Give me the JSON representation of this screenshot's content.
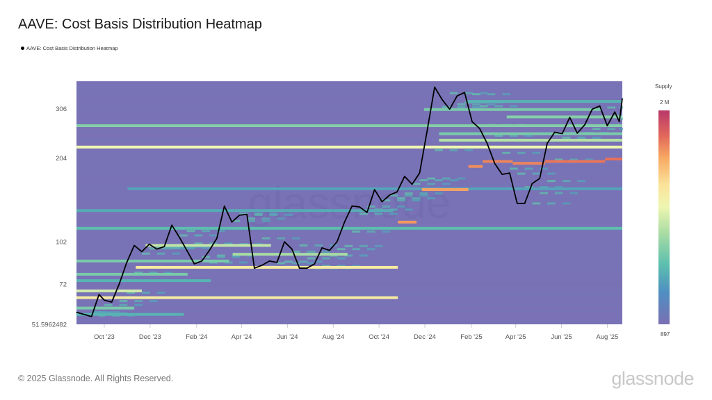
{
  "title": "AAVE: Cost Basis Distribution Heatmap",
  "legend": {
    "label": "AAVE: Cost Basis Distribution Heatmap",
    "color": "#000000"
  },
  "colorbar": {
    "title": "Supply",
    "max_label": "2 M",
    "min_label": "897",
    "colors": [
      "#7a6fb3",
      "#4f8fc2",
      "#5cbfae",
      "#a6dba4",
      "#eef6b0",
      "#fbe39a",
      "#f7a862",
      "#e2685a",
      "#b8386a"
    ]
  },
  "footer": "© 2025 Glassnode. All Rights Reserved.",
  "logo": "glassnode",
  "watermark": "glassnode",
  "chart_data": {
    "type": "heatmap",
    "title": "AAVE: Cost Basis Distribution Heatmap",
    "y_scale": "log",
    "ylim": [
      51.5962482,
      384
    ],
    "xlim": [
      "2023-08-25",
      "2025-08-21"
    ],
    "y_ticks": [
      {
        "value": 51.5962482,
        "label": "51.5962482"
      },
      {
        "value": 72,
        "label": "72"
      },
      {
        "value": 102,
        "label": "102"
      },
      {
        "value": 204,
        "label": "204"
      },
      {
        "value": 306,
        "label": "306"
      }
    ],
    "x_ticks": [
      {
        "date": "2023-10-01",
        "label": "Oct '23"
      },
      {
        "date": "2023-12-01",
        "label": "Dec '23"
      },
      {
        "date": "2024-02-01",
        "label": "Feb '24"
      },
      {
        "date": "2024-04-01",
        "label": "Apr '24"
      },
      {
        "date": "2024-06-01",
        "label": "Jun '24"
      },
      {
        "date": "2024-08-01",
        "label": "Aug '24"
      },
      {
        "date": "2024-10-01",
        "label": "Oct '24"
      },
      {
        "date": "2024-12-01",
        "label": "Dec '24"
      },
      {
        "date": "2025-02-01",
        "label": "Feb '25"
      },
      {
        "date": "2025-04-01",
        "label": "Apr '25"
      },
      {
        "date": "2025-06-01",
        "label": "Jun '25"
      },
      {
        "date": "2025-08-01",
        "label": "Aug '25"
      }
    ],
    "grid": false,
    "background_color": "#7a72b6",
    "line_color": "#000000",
    "price_series": {
      "name": "AAVE: Cost Basis Distribution Heatmap",
      "dates": [
        "2023-08-25",
        "2023-09-04",
        "2023-09-14",
        "2023-09-24",
        "2023-10-01",
        "2023-10-11",
        "2023-10-21",
        "2023-10-31",
        "2023-11-10",
        "2023-11-20",
        "2023-11-30",
        "2023-12-10",
        "2023-12-20",
        "2023-12-30",
        "2024-01-09",
        "2024-01-19",
        "2024-01-29",
        "2024-02-08",
        "2024-02-18",
        "2024-02-28",
        "2024-03-09",
        "2024-03-19",
        "2024-03-29",
        "2024-04-08",
        "2024-04-18",
        "2024-04-28",
        "2024-05-08",
        "2024-05-18",
        "2024-05-28",
        "2024-06-07",
        "2024-06-17",
        "2024-06-27",
        "2024-07-07",
        "2024-07-17",
        "2024-07-27",
        "2024-08-06",
        "2024-08-16",
        "2024-08-26",
        "2024-09-05",
        "2024-09-15",
        "2024-09-25",
        "2024-10-05",
        "2024-10-15",
        "2024-10-25",
        "2024-11-04",
        "2024-11-14",
        "2024-11-24",
        "2024-12-04",
        "2024-12-14",
        "2024-12-24",
        "2025-01-03",
        "2025-01-13",
        "2025-01-23",
        "2025-02-02",
        "2025-02-12",
        "2025-02-22",
        "2025-03-04",
        "2025-03-14",
        "2025-03-24",
        "2025-04-03",
        "2025-04-13",
        "2025-04-23",
        "2025-05-03",
        "2025-05-13",
        "2025-05-23",
        "2025-06-02",
        "2025-06-12",
        "2025-06-22",
        "2025-07-02",
        "2025-07-12",
        "2025-07-22",
        "2025-08-01",
        "2025-08-11",
        "2025-08-17",
        "2025-08-21"
      ],
      "values": [
        57,
        56,
        55,
        66,
        63,
        62,
        72,
        86,
        99,
        94,
        100,
        96,
        98,
        117,
        106,
        95,
        85,
        87,
        95,
        105,
        137,
        120,
        127,
        128,
        82,
        84,
        87,
        86,
        102,
        96,
        82,
        82,
        85,
        97,
        95,
        102,
        120,
        137,
        136,
        130,
        157,
        142,
        150,
        154,
        175,
        164,
        180,
        255,
        366,
        330,
        305,
        340,
        350,
        275,
        260,
        230,
        195,
        178,
        180,
        140,
        140,
        165,
        172,
        230,
        252,
        249,
        285,
        250,
        268,
        305,
        313,
        266,
        298,
        275,
        333
      ]
    },
    "bands": [
      {
        "price": 266,
        "start": "2023-08-25",
        "end": "2025-08-21",
        "intensity": 0.32
      },
      {
        "price": 223,
        "start": "2023-08-25",
        "end": "2025-08-21",
        "intensity": 0.5
      },
      {
        "price": 114,
        "start": "2023-08-25",
        "end": "2025-08-21",
        "intensity": 0.25
      },
      {
        "price": 158,
        "start": "2023-11-01",
        "end": "2025-08-21",
        "intensity": 0.18
      },
      {
        "price": 132,
        "start": "2023-08-25",
        "end": "2024-10-20",
        "intensity": 0.2
      },
      {
        "price": 82.6,
        "start": "2023-11-12",
        "end": "2024-10-26",
        "intensity": 0.58
      },
      {
        "price": 64.3,
        "start": "2023-08-25",
        "end": "2024-10-26",
        "intensity": 0.58
      },
      {
        "price": 87,
        "start": "2023-08-25",
        "end": "2024-03-15",
        "intensity": 0.3
      },
      {
        "price": 78,
        "start": "2023-08-25",
        "end": "2024-01-20",
        "intensity": 0.3
      },
      {
        "price": 74,
        "start": "2023-08-25",
        "end": "2024-02-20",
        "intensity": 0.22
      },
      {
        "price": 68,
        "start": "2023-08-25",
        "end": "2023-11-20",
        "intensity": 0.45
      },
      {
        "price": 59,
        "start": "2023-08-25",
        "end": "2023-11-10",
        "intensity": 0.3
      },
      {
        "price": 56,
        "start": "2023-08-25",
        "end": "2024-01-15",
        "intensity": 0.22
      },
      {
        "price": 99,
        "start": "2023-11-25",
        "end": "2024-05-10",
        "intensity": 0.42
      },
      {
        "price": 92,
        "start": "2024-03-20",
        "end": "2024-08-20",
        "intensity": 0.38
      },
      {
        "price": 120,
        "start": "2024-10-26",
        "end": "2024-11-20",
        "intensity": 0.78
      },
      {
        "price": 157,
        "start": "2024-11-27",
        "end": "2025-01-28",
        "intensity": 0.76
      },
      {
        "price": 190,
        "start": "2025-01-28",
        "end": "2025-02-16",
        "intensity": 0.8
      },
      {
        "price": 198,
        "start": "2025-02-16",
        "end": "2025-03-28",
        "intensity": 0.82
      },
      {
        "price": 195,
        "start": "2025-03-28",
        "end": "2025-05-10",
        "intensity": 0.82
      },
      {
        "price": 198,
        "start": "2025-05-10",
        "end": "2025-07-29",
        "intensity": 0.85
      },
      {
        "price": 202,
        "start": "2025-07-29",
        "end": "2025-08-21",
        "intensity": 0.86
      },
      {
        "price": 304,
        "start": "2024-11-30",
        "end": "2025-07-25",
        "intensity": 0.3
      },
      {
        "price": 325,
        "start": "2025-01-25",
        "end": "2025-08-21",
        "intensity": 0.22
      },
      {
        "price": 286,
        "start": "2025-03-20",
        "end": "2025-08-21",
        "intensity": 0.32
      },
      {
        "price": 249,
        "start": "2024-12-20",
        "end": "2025-08-21",
        "intensity": 0.3
      },
      {
        "price": 236,
        "start": "2024-12-20",
        "end": "2025-08-21",
        "intensity": 0.4
      }
    ]
  }
}
